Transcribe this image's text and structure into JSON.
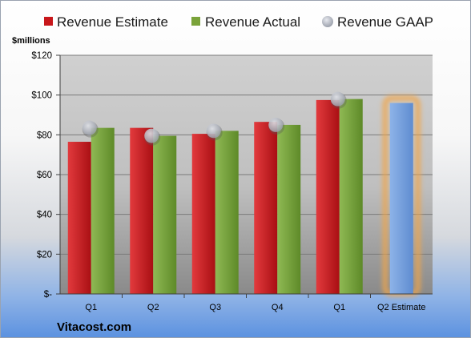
{
  "chart_data": {
    "type": "bar",
    "categories": [
      "Q1",
      "Q2",
      "Q3",
      "Q4",
      "Q1",
      "Q2 Estimate"
    ],
    "series": [
      {
        "name": "Revenue Estimate",
        "values": [
          76.5,
          83.5,
          80.5,
          86.5,
          97.5,
          96
        ],
        "color": "#c8171b"
      },
      {
        "name": "Revenue Actual",
        "values": [
          83.5,
          79.5,
          82,
          85,
          98,
          null
        ],
        "color": "#7aa33a"
      },
      {
        "name": "Revenue GAAP",
        "type": "scatter",
        "values": [
          83.5,
          79.5,
          82,
          85,
          98,
          null
        ],
        "color": "#b8bcc6"
      }
    ],
    "highlight": {
      "category": "Q2 Estimate",
      "value": 96,
      "fill": "#7ba3dc",
      "glow": "#f0a64a"
    },
    "ylabel": "$millions",
    "ylim": [
      0,
      120
    ],
    "yticks": [
      0,
      20,
      40,
      60,
      80,
      100,
      120
    ],
    "ytick_labels": [
      "$-",
      "$20",
      "$40",
      "$60",
      "$80",
      "$100",
      "$120"
    ],
    "grid": true,
    "legend": "top",
    "source": "Vitacost.com",
    "plot_background": "#c8c8c8"
  }
}
